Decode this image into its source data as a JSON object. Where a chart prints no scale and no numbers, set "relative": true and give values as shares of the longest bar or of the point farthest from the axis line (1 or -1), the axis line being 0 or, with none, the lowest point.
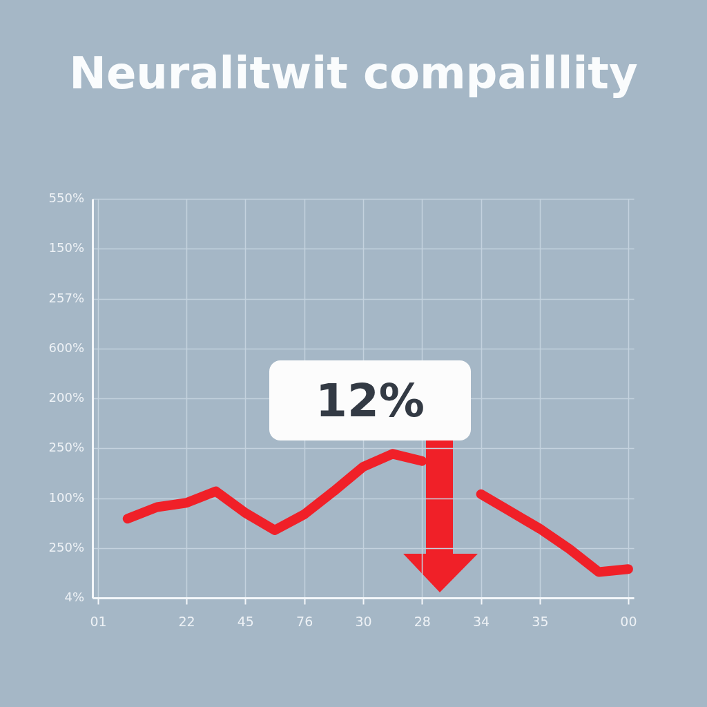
{
  "chart_data": {
    "type": "line",
    "title": "Neuralitwit compaillity",
    "relative": true,
    "categories": [
      "01",
      null,
      null,
      "22",
      null,
      "45",
      null,
      "76",
      null,
      "30",
      null,
      "28",
      null,
      "34",
      null,
      "35",
      null,
      null,
      "00"
    ],
    "series": [
      {
        "color": "#f02028",
        "values": [
          null,
          0.55,
          0.63,
          0.66,
          0.74,
          0.59,
          0.47,
          0.58,
          0.74,
          0.91,
          1,
          0.95,
          null,
          0.72,
          0.6,
          0.48,
          0.34,
          0.18,
          0.2
        ]
      }
    ],
    "grid": true,
    "annotations": [
      "12%",
      "550%",
      "150%",
      "257%",
      "600%",
      "200%",
      "250%",
      "100%",
      "250%",
      "4%"
    ]
  }
}
